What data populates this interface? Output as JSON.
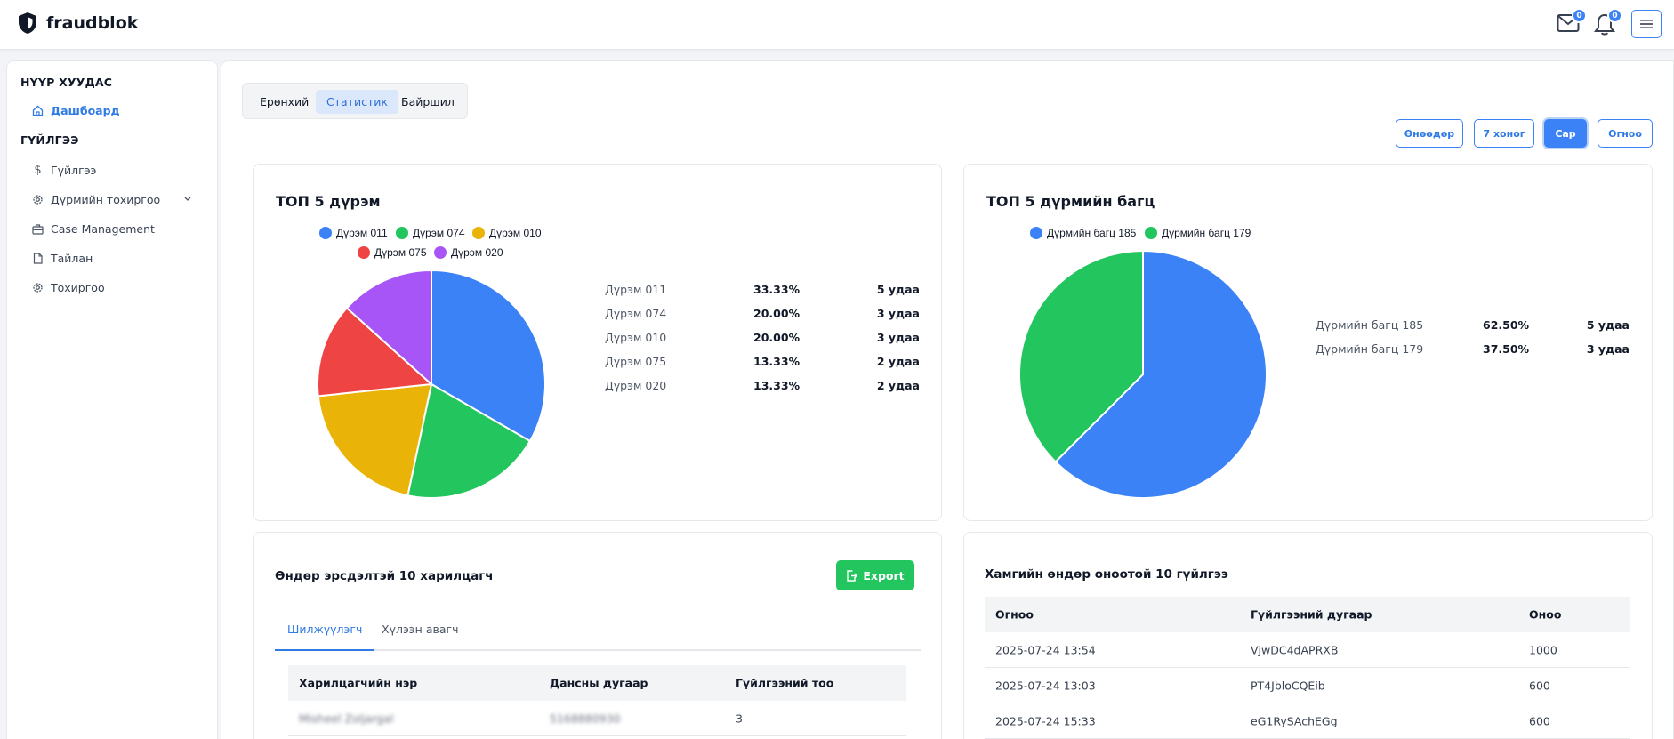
{
  "app": {
    "name": "fraudblok"
  },
  "header": {
    "mail_count": "0",
    "notification_count": "0"
  },
  "sidebar": {
    "section_home": "НҮҮР ХУУДАС",
    "dashboard": "Дашбоард",
    "section_transactions": "ГҮЙЛГЭЭ",
    "items": [
      {
        "label": "Гүйлгээ",
        "icon": "dollar-icon"
      },
      {
        "label": "Дүрмийн тохиргоо",
        "icon": "gear-icon"
      },
      {
        "label": "Case Management",
        "icon": "briefcase-icon"
      },
      {
        "label": "Тайлан",
        "icon": "file-icon"
      },
      {
        "label": "Тохиргоо",
        "icon": "gear-icon"
      }
    ]
  },
  "tabs": [
    "Ерөнхий",
    "Статистик",
    "Байршил"
  ],
  "active_tab": "Статистик",
  "periods": [
    "Өнөөдөр",
    "7 хоног",
    "Сар",
    "Огноо"
  ],
  "active_period": "Сар",
  "rules_card": {
    "title": "ТОП 5 дүрэм",
    "rows": [
      {
        "name": "Дүрэм 011",
        "pct": "33.33%",
        "count": "5 удаа"
      },
      {
        "name": "Дүрэм 074",
        "pct": "20.00%",
        "count": "3 удаа"
      },
      {
        "name": "Дүрэм 010",
        "pct": "20.00%",
        "count": "3 удаа"
      },
      {
        "name": "Дүрэм 075",
        "pct": "13.33%",
        "count": "2 удаа"
      },
      {
        "name": "Дүрэм 020",
        "pct": "13.33%",
        "count": "2 удаа"
      }
    ]
  },
  "groups_card": {
    "title": "ТОП 5 дүрмийн багц",
    "rows": [
      {
        "name": "Дүрмийн багц 185",
        "pct": "62.50%",
        "count": "5 удаа"
      },
      {
        "name": "Дүрмийн багц 179",
        "pct": "37.50%",
        "count": "3 удаа"
      }
    ]
  },
  "chart_data": [
    {
      "type": "pie",
      "categories": [
        "Дүрэм 011",
        "Дүрэм 074",
        "Дүрэм 010",
        "Дүрэм 075",
        "Дүрэм 020"
      ],
      "values": [
        5,
        3,
        3,
        2,
        2
      ],
      "colors": [
        "#3b82f6",
        "#22c55e",
        "#eab308",
        "#ef4444",
        "#a855f7"
      ],
      "legend": "top"
    },
    {
      "type": "pie",
      "categories": [
        "Дүрмийн багц 185",
        "Дүрмийн багц 179"
      ],
      "values": [
        5,
        3
      ],
      "colors": [
        "#3b82f6",
        "#22c55e"
      ],
      "legend": "top"
    }
  ],
  "risk_card": {
    "title": "Өндөр эрсдэлтэй 10 харилцагч",
    "export_label": "Export",
    "subtabs": [
      "Шилжүүлэгч",
      "Хүлээн авагч"
    ],
    "columns": [
      "Харилцагчийн нэр",
      "Дансны дугаар",
      "Гүйлгээний тоо"
    ],
    "rows": [
      {
        "name": "Misheel Zoljargal",
        "account": "5168880930",
        "count": "3"
      }
    ]
  },
  "score_card": {
    "title": "Хамгийн өндөр оноотой 10 гүйлгээ",
    "columns": [
      "Огноо",
      "Гүйлгээний дугаар",
      "Оноо"
    ],
    "rows": [
      {
        "date": "2025-07-24 13:54",
        "id": "VjwDC4dAPRXB",
        "score": "1000"
      },
      {
        "date": "2025-07-24 13:03",
        "id": "PT4JbloCQEib",
        "score": "600"
      },
      {
        "date": "2025-07-24 15:33",
        "id": "eG1RySAchEGg",
        "score": "600"
      }
    ]
  }
}
